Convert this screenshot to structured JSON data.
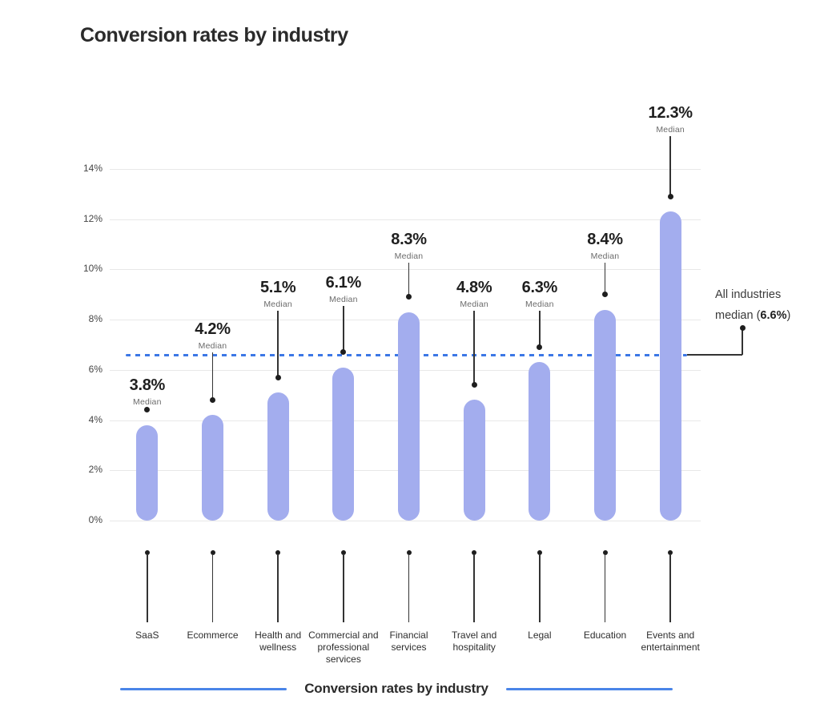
{
  "page": {
    "title": "Conversion rates by industry"
  },
  "chart_data": {
    "type": "bar",
    "title": "Conversion rates by industry",
    "caption": "Conversion rates by industry",
    "categories": [
      "SaaS",
      "Ecommerce",
      "Health and wellness",
      "Commercial and professional services",
      "Financial services",
      "Travel and hospitality",
      "Legal",
      "Education",
      "Events and entertainment"
    ],
    "values": [
      3.8,
      4.2,
      5.1,
      6.1,
      8.3,
      4.8,
      6.3,
      8.4,
      12.3
    ],
    "value_labels": [
      "3.8%",
      "4.2%",
      "5.1%",
      "6.1%",
      "8.3%",
      "4.8%",
      "6.3%",
      "8.4%",
      "12.3%"
    ],
    "point_sublabel": "Median",
    "xlabel": "",
    "ylabel": "",
    "ylim": [
      0,
      14
    ],
    "grid": true,
    "y_ticks": [
      {
        "value": 0,
        "label": "0%"
      },
      {
        "value": 2,
        "label": "2%"
      },
      {
        "value": 4,
        "label": "4%"
      },
      {
        "value": 6,
        "label": "6%"
      },
      {
        "value": 8,
        "label": "8%"
      },
      {
        "value": 10,
        "label": "10%"
      },
      {
        "value": 12,
        "label": "12%"
      },
      {
        "value": 14,
        "label": "14%"
      }
    ],
    "median_line": {
      "value": 6.6,
      "annotation_line1": "All industries",
      "annotation_prefix": "median (",
      "annotation_value": "6.6%",
      "annotation_suffix": ")"
    },
    "colors": {
      "bar": "#a3adee",
      "median_line": "#3c77e6",
      "caption_rule": "#4a85e8",
      "grid": "#e8e8e8",
      "pin": "#333333"
    },
    "layout": {
      "legend": "none",
      "value_label_tops": [
        470,
        400,
        348,
        342,
        288,
        348,
        348,
        288,
        130
      ]
    }
  }
}
